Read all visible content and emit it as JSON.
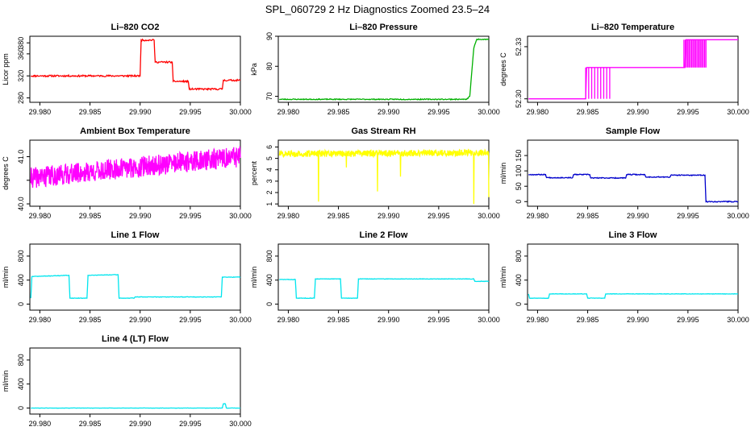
{
  "main_title": "SPL_060729  2 Hz Diagnostics Zoomed 23.5–24",
  "chart_data": [
    {
      "type": "line",
      "title": "Li–820 CO2",
      "xlabel": "",
      "ylabel": "Licor ppm",
      "color": "#ff0000",
      "xlim": [
        29.979,
        30.0
      ],
      "xticks": [
        29.98,
        29.985,
        29.99,
        29.995,
        30.0
      ],
      "xtick_labels": [
        "29.980",
        "29.985",
        "29.990",
        "29.995",
        "30.000"
      ],
      "ylim": [
        272,
        392
      ],
      "yticks": [
        280,
        320,
        360,
        380
      ],
      "ytick_labels": [
        "280",
        "320",
        "360",
        "380"
      ],
      "x": [
        29.9791,
        29.9798,
        29.99,
        29.9901,
        29.9914,
        29.9915,
        29.9932,
        29.9933,
        29.9948,
        29.9949,
        29.9982,
        29.9983,
        30.0
      ],
      "y": [
        320,
        320,
        320,
        385,
        385,
        345,
        345,
        310,
        310,
        296,
        296,
        312,
        312
      ],
      "noise": 1.5,
      "seed": 11
    },
    {
      "type": "line",
      "title": "Li–820 Pressure",
      "xlabel": "",
      "ylabel": "kPa",
      "color": "#00b000",
      "xlim": [
        29.979,
        30.0
      ],
      "xticks": [
        29.98,
        29.985,
        29.99,
        29.995,
        30.0
      ],
      "xtick_labels": [
        "29.980",
        "29.985",
        "29.990",
        "29.995",
        "30.000"
      ],
      "ylim": [
        68,
        90
      ],
      "yticks": [
        70,
        80,
        90
      ],
      "ytick_labels": [
        "70",
        "80",
        "90"
      ],
      "x": [
        29.9791,
        29.9978,
        29.9981,
        29.9985,
        29.9988,
        30.0
      ],
      "y": [
        69,
        69,
        70,
        86,
        89,
        89
      ],
      "noise": 0.15,
      "seed": 23
    },
    {
      "type": "line",
      "title": "Li–820 Temperature",
      "xlabel": "",
      "ylabel": "degrees C",
      "color": "#ff00ff",
      "xlim": [
        29.979,
        30.0
      ],
      "xticks": [
        29.98,
        29.985,
        29.99,
        29.995,
        30.0
      ],
      "xtick_labels": [
        "29.980",
        "29.985",
        "29.990",
        "29.995",
        "30.000"
      ],
      "ylim": [
        52.298,
        52.336
      ],
      "yticks": [
        52.3,
        52.33
      ],
      "ytick_labels": [
        "52.30",
        "52.33"
      ],
      "x": [
        29.9791,
        29.9848,
        29.9849,
        29.9947,
        29.9948,
        30.0
      ],
      "y": [
        52.3,
        52.3,
        52.318,
        52.318,
        52.334,
        52.334
      ],
      "toggles": [
        {
          "from": 29.9848,
          "to": 29.9872,
          "low": 52.3,
          "high": 52.318,
          "count": 9
        },
        {
          "from": 29.9946,
          "to": 29.9968,
          "low": 52.318,
          "high": 52.334,
          "count": 18
        }
      ],
      "noise": 0,
      "seed": 3
    },
    {
      "type": "line",
      "title": "Ambient Box Temperature",
      "xlabel": "",
      "ylabel": "degrees C",
      "color": "#ff00ff",
      "xlim": [
        29.979,
        30.0
      ],
      "xticks": [
        29.98,
        29.985,
        29.99,
        29.995,
        30.0
      ],
      "xtick_labels": [
        "29.980",
        "29.985",
        "29.990",
        "29.995",
        "30.000"
      ],
      "ylim": [
        39.95,
        41.35
      ],
      "yticks": [
        40.0,
        40.5,
        41.0
      ],
      "ytick_labels": [
        "40.0",
        "",
        "41.0"
      ],
      "x": [
        29.9791,
        30.0
      ],
      "y": [
        40.55,
        41.0
      ],
      "noise": 0.22,
      "dense": true,
      "seed": 41
    },
    {
      "type": "line",
      "title": "Gas Stream RH",
      "xlabel": "",
      "ylabel": "percent",
      "color": "#ffff00",
      "xlim": [
        29.979,
        30.0
      ],
      "xticks": [
        29.98,
        29.985,
        29.99,
        29.995,
        30.0
      ],
      "xtick_labels": [
        "29.980",
        "29.985",
        "29.990",
        "29.995",
        "30.000"
      ],
      "ylim": [
        0.8,
        6.6
      ],
      "yticks": [
        1,
        2,
        3,
        4,
        5,
        6
      ],
      "ytick_labels": [
        "1",
        "2",
        "3",
        "4",
        "5",
        "6"
      ],
      "x": [
        29.9791,
        30.0
      ],
      "y": [
        5.4,
        5.5
      ],
      "noise": 0.28,
      "dense": true,
      "spikes": [
        {
          "x": 29.983,
          "y": 1.2
        },
        {
          "x": 29.9858,
          "y": 4.2
        },
        {
          "x": 29.9889,
          "y": 2.1
        },
        {
          "x": 29.9912,
          "y": 3.4
        },
        {
          "x": 29.9985,
          "y": 1.0
        },
        {
          "x": 30.0,
          "y": 1.6
        }
      ],
      "seed": 57
    },
    {
      "type": "line",
      "title": "Sample Flow",
      "xlabel": "",
      "ylabel": "ml/min",
      "color": "#0000cc",
      "xlim": [
        29.979,
        30.0
      ],
      "xticks": [
        29.98,
        29.985,
        29.99,
        29.995,
        30.0
      ],
      "xtick_labels": [
        "29.980",
        "29.985",
        "29.990",
        "29.995",
        "30.000"
      ],
      "ylim": [
        -15,
        200
      ],
      "yticks": [
        0,
        50,
        100,
        150
      ],
      "ytick_labels": [
        "0",
        "50",
        "100",
        "150"
      ],
      "x": [
        29.9791,
        29.9808,
        29.9809,
        29.9835,
        29.9836,
        29.9852,
        29.9853,
        29.9888,
        29.9889,
        29.9907,
        29.9908,
        29.9932,
        29.9933,
        29.9967,
        29.9968,
        30.0
      ],
      "y": [
        88,
        88,
        78,
        78,
        88,
        88,
        77,
        77,
        88,
        88,
        80,
        80,
        86,
        86,
        0,
        0
      ],
      "noise": 1.5,
      "seed": 67
    },
    {
      "type": "line",
      "title": "Line 1 Flow",
      "xlabel": "",
      "ylabel": "ml/min",
      "color": "#00e5ee",
      "xlim": [
        29.979,
        30.0
      ],
      "xticks": [
        29.98,
        29.985,
        29.99,
        29.995,
        30.0
      ],
      "xtick_labels": [
        "29.980",
        "29.985",
        "29.990",
        "29.995",
        "30.000"
      ],
      "ylim": [
        -100,
        1000
      ],
      "yticks": [
        0,
        400,
        800
      ],
      "ytick_labels": [
        "0",
        "400",
        "800"
      ],
      "x": [
        29.9791,
        29.9792,
        29.9829,
        29.983,
        29.9847,
        29.9848,
        29.9878,
        29.9879,
        29.9894,
        29.9895,
        29.9981,
        29.9982,
        30.0
      ],
      "y": [
        100,
        460,
        480,
        100,
        100,
        480,
        490,
        100,
        100,
        120,
        120,
        450,
        450
      ],
      "noise": 4,
      "seed": 71
    },
    {
      "type": "line",
      "title": "Line 2 Flow",
      "xlabel": "",
      "ylabel": "ml/min",
      "color": "#00e5ee",
      "xlim": [
        29.979,
        30.0
      ],
      "xticks": [
        29.98,
        29.985,
        29.99,
        29.995,
        30.0
      ],
      "xtick_labels": [
        "29.980",
        "29.985",
        "29.990",
        "29.995",
        "30.000"
      ],
      "ylim": [
        -100,
        1000
      ],
      "yticks": [
        0,
        400,
        800
      ],
      "ytick_labels": [
        "0",
        "400",
        "800"
      ],
      "x": [
        29.9791,
        29.9807,
        29.9808,
        29.9826,
        29.9827,
        29.9852,
        29.9853,
        29.9869,
        29.987,
        29.9985,
        29.9986,
        30.0
      ],
      "y": [
        410,
        410,
        100,
        100,
        420,
        420,
        100,
        100,
        420,
        420,
        380,
        380
      ],
      "noise": 4,
      "seed": 83
    },
    {
      "type": "line",
      "title": "Line 3 Flow",
      "xlabel": "",
      "ylabel": "ml/min",
      "color": "#00e5ee",
      "xlim": [
        29.979,
        30.0
      ],
      "xticks": [
        29.98,
        29.985,
        29.99,
        29.995,
        30.0
      ],
      "xtick_labels": [
        "29.980",
        "29.985",
        "29.990",
        "29.995",
        "30.000"
      ],
      "ylim": [
        -100,
        1000
      ],
      "yticks": [
        0,
        400,
        800
      ],
      "ytick_labels": [
        "0",
        "400",
        "800"
      ],
      "x": [
        29.9791,
        29.9792,
        29.9811,
        29.9812,
        29.9849,
        29.985,
        29.9867,
        29.9868,
        30.0
      ],
      "y": [
        170,
        100,
        100,
        170,
        170,
        100,
        100,
        170,
        170
      ],
      "noise": 3,
      "seed": 97
    },
    {
      "type": "line",
      "title": "Line 4 (LT) Flow",
      "xlabel": "",
      "ylabel": "ml/min",
      "color": "#00e5ee",
      "xlim": [
        29.979,
        30.0
      ],
      "xticks": [
        29.98,
        29.985,
        29.99,
        29.995,
        30.0
      ],
      "xtick_labels": [
        "29.980",
        "29.985",
        "29.990",
        "29.995",
        "30.000"
      ],
      "ylim": [
        -100,
        1000
      ],
      "yticks": [
        0,
        400,
        800
      ],
      "ytick_labels": [
        "0",
        "400",
        "800"
      ],
      "x": [
        29.9791,
        29.9982,
        29.9983,
        29.9985,
        29.9986,
        30.0
      ],
      "y": [
        0,
        0,
        70,
        70,
        0,
        0
      ],
      "noise": 2,
      "seed": 101
    }
  ]
}
